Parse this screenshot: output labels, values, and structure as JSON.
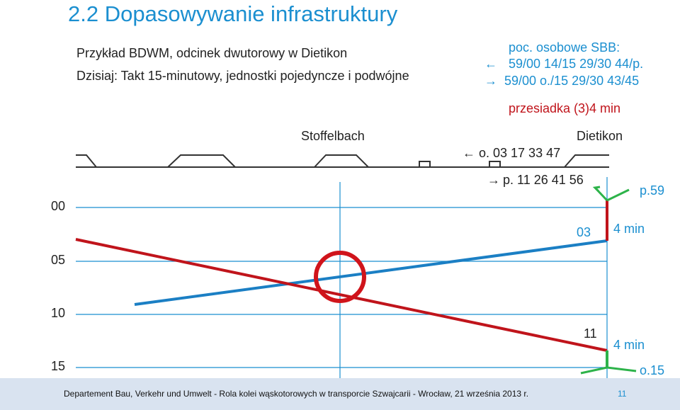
{
  "title": "2.2  Dopasowywanie infrastruktury",
  "subtitle1": "Przykład BDWM, odcinek dwutorowy w Dietikon",
  "subtitle2": "Dzisiaj: Takt 15-minutowy, jednostki pojedyncze i podwójne",
  "sbb": {
    "line1": "poc. osobowe SBB:",
    "line2_arrow": "←",
    "line2": "59/00 14/15 29/30 44/p.",
    "line3_arrow": "→",
    "line3": "59/00  o./15  29/30 43/45",
    "transfer": "przesiadka (3)4 min"
  },
  "stations": {
    "stoffelbach": "Stoffelbach",
    "dietikon": "Dietikon"
  },
  "departures": {
    "o_arrow": "←",
    "o_label": "o. 03 17 33 47",
    "p_arrow": "→",
    "p_label": "p. 11 26 41 56"
  },
  "time_axis": [
    "00",
    "05",
    "10",
    "15"
  ],
  "labels": {
    "p59": "p.59",
    "t03": "03",
    "min4_a": "4 min",
    "t11": "11",
    "min4_b": "4 min",
    "o15": "o.15"
  },
  "footer": "Departement Bau, Verkehr und Umwelt - Rola kolei wąskotorowych w transporcie Szwajcarii - Wrocław, 21 września 2013 r.",
  "page_number": "11",
  "colors": {
    "accent": "#1b8fd0",
    "red_line": "#c0141b",
    "blue_line": "#1b7fc4",
    "green": "#2db34a",
    "footer_bg": "#d9e3f0"
  }
}
